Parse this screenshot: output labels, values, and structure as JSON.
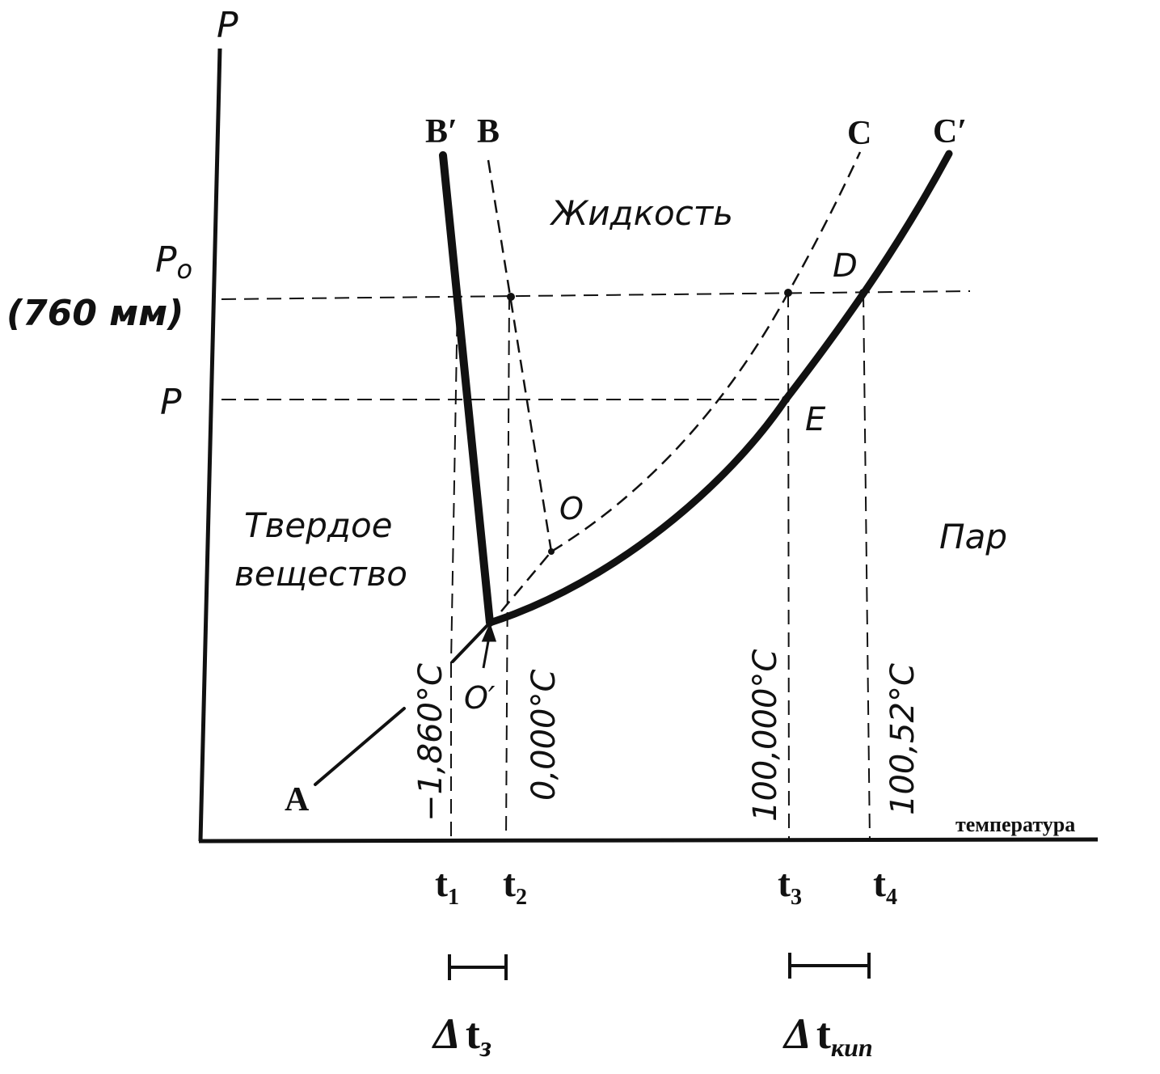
{
  "axes": {
    "y_label": "P",
    "x_label": "температура"
  },
  "pressure_labels": {
    "p0": "P",
    "p0_sub": "o",
    "p0_mm": "(760 мм)",
    "p": "P"
  },
  "regions": {
    "liquid": "Жидкость",
    "solid_line1": "Твердое",
    "solid_line2": "вещество",
    "vapor": "Пар"
  },
  "points": {
    "A": "A",
    "B": "B",
    "B_prime": "B′",
    "C": "C",
    "C_prime": "C′",
    "D": "D",
    "E": "E",
    "O": "O",
    "O_prime": "O′"
  },
  "temperatures": {
    "t1": "−1,860°C",
    "t2": "0,000°C",
    "t3": "100,000°C",
    "t4": "100,52°C"
  },
  "ticks": {
    "t1": {
      "base": "t",
      "sub": "1"
    },
    "t2": {
      "base": "t",
      "sub": "2"
    },
    "t3": {
      "base": "t",
      "sub": "3"
    },
    "t4": {
      "base": "t",
      "sub": "4"
    }
  },
  "intervals": {
    "freeze": {
      "delta": "Δ",
      "base": "t",
      "sub": "з"
    },
    "boil": {
      "delta": "Δ",
      "base": "t",
      "sub": "кип"
    }
  },
  "colors": {
    "ink": "#111111",
    "paper": "#ffffff"
  }
}
